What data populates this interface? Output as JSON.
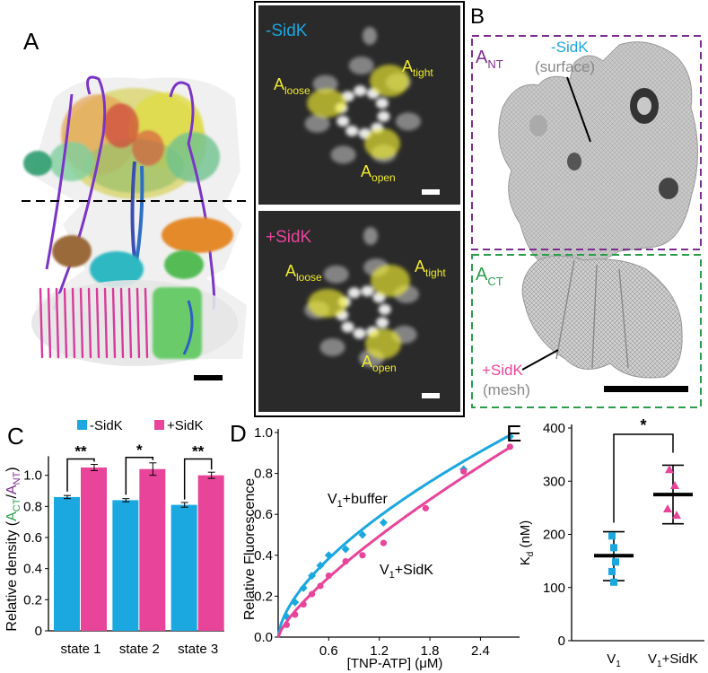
{
  "colors": {
    "minus": "#1ba7df",
    "plus": "#e8449a",
    "yellow": "#f0ec2e",
    "purple": "#7b2d8e",
    "green": "#2a9d4b",
    "gray_label": "#888888"
  },
  "panelA": {
    "letter": "A",
    "cryoem": {
      "top_tag": "-SidK",
      "bottom_tag": "+SidK",
      "loose": [
        "A",
        "loose"
      ],
      "tight": [
        "A",
        "tight"
      ],
      "open": [
        "A",
        "open"
      ]
    }
  },
  "panelB": {
    "letter": "B",
    "ant_label": [
      "A",
      "NT"
    ],
    "act_label": [
      "A",
      "CT"
    ],
    "minus_label": "-SidK",
    "minus_sub": "(surface)",
    "plus_label": "+SidK",
    "plus_sub": "(mesh)"
  },
  "panelC": {
    "letter": "C",
    "legend": [
      "-SidK",
      "+SidK"
    ],
    "ylabel_parts": [
      "Relative density (",
      "A",
      "CT",
      "/",
      "A",
      "NT",
      ")"
    ],
    "sig": [
      "**",
      "*",
      "**"
    ]
  },
  "panelD": {
    "letter": "D",
    "ylabel": "Relative Fluorescence",
    "xlabel": "[TNP-ATP] (μM)",
    "label_buffer": [
      "V",
      "1",
      "+buffer"
    ],
    "label_sidk": [
      "V",
      "1",
      "+SidK"
    ]
  },
  "panelE": {
    "letter": "E",
    "ylabel_parts": [
      "K",
      "d",
      " (nM)"
    ],
    "sig": "*",
    "xcat1": [
      "V",
      "1"
    ],
    "xcat2": [
      "V",
      "1",
      "+SidK"
    ]
  },
  "chart_data": [
    {
      "type": "bar",
      "panel": "C",
      "categories": [
        "state 1",
        "state 2",
        "state 3"
      ],
      "series": [
        {
          "name": "-SidK",
          "values": [
            0.86,
            0.84,
            0.81
          ],
          "errors": [
            0.01,
            0.01,
            0.015
          ]
        },
        {
          "name": "+SidK",
          "values": [
            1.05,
            1.04,
            1.0
          ],
          "errors": [
            0.02,
            0.04,
            0.02
          ]
        }
      ],
      "ylim": [
        0,
        1.1
      ],
      "yticks": [
        0,
        0.2,
        0.4,
        0.6,
        0.8,
        1.0
      ],
      "ytick_labels": [
        "0",
        "0.2",
        "0.4",
        "0.6",
        "0.8",
        "1.0"
      ]
    },
    {
      "type": "scatter",
      "panel": "D",
      "xlim": [
        0,
        2.8
      ],
      "ylim": [
        0,
        1.0
      ],
      "xticks": [
        0.6,
        1.2,
        1.8,
        2.4
      ],
      "xtick_labels": [
        "0.6",
        "1.2",
        "1.8",
        "2.4"
      ],
      "yticks": [
        0,
        0.2,
        0.4,
        0.6,
        0.8,
        1.0
      ],
      "ytick_labels": [
        "0.0",
        "0.2",
        "0.4",
        "0.6",
        "0.8",
        "1.0"
      ],
      "series": [
        {
          "name": "V1+buffer",
          "x": [
            0.1,
            0.2,
            0.3,
            0.4,
            0.5,
            0.6,
            0.8,
            1.0,
            1.25,
            2.2,
            2.75
          ],
          "y": [
            0.1,
            0.17,
            0.24,
            0.3,
            0.35,
            0.4,
            0.43,
            0.5,
            0.56,
            0.82,
            0.98
          ],
          "fit": {
            "a": 0.527,
            "b": 0.62
          }
        },
        {
          "name": "V1+SidK",
          "x": [
            0.1,
            0.2,
            0.3,
            0.4,
            0.5,
            0.6,
            0.8,
            1.0,
            1.25,
            1.75,
            2.2,
            2.75
          ],
          "y": [
            0.06,
            0.11,
            0.16,
            0.21,
            0.25,
            0.3,
            0.37,
            0.4,
            0.46,
            0.63,
            0.81,
            0.93
          ],
          "fit": {
            "a": 0.43,
            "b": 0.76
          }
        }
      ]
    },
    {
      "type": "scatter",
      "panel": "E",
      "categories": [
        "V1",
        "V1+SidK"
      ],
      "ylim": [
        0,
        400
      ],
      "yticks": [
        0,
        100,
        200,
        300,
        400
      ],
      "ytick_labels": [
        "0",
        "100",
        "200",
        "300",
        "400"
      ],
      "series": [
        {
          "name": "V1",
          "values": [
            197,
            175,
            148,
            130,
            110
          ],
          "mean": 160,
          "sd_low": 113,
          "sd_high": 205
        },
        {
          "name": "V1+SidK",
          "values": [
            322,
            292,
            248,
            236
          ],
          "mean": 275,
          "sd_low": 220,
          "sd_high": 330
        }
      ]
    }
  ]
}
